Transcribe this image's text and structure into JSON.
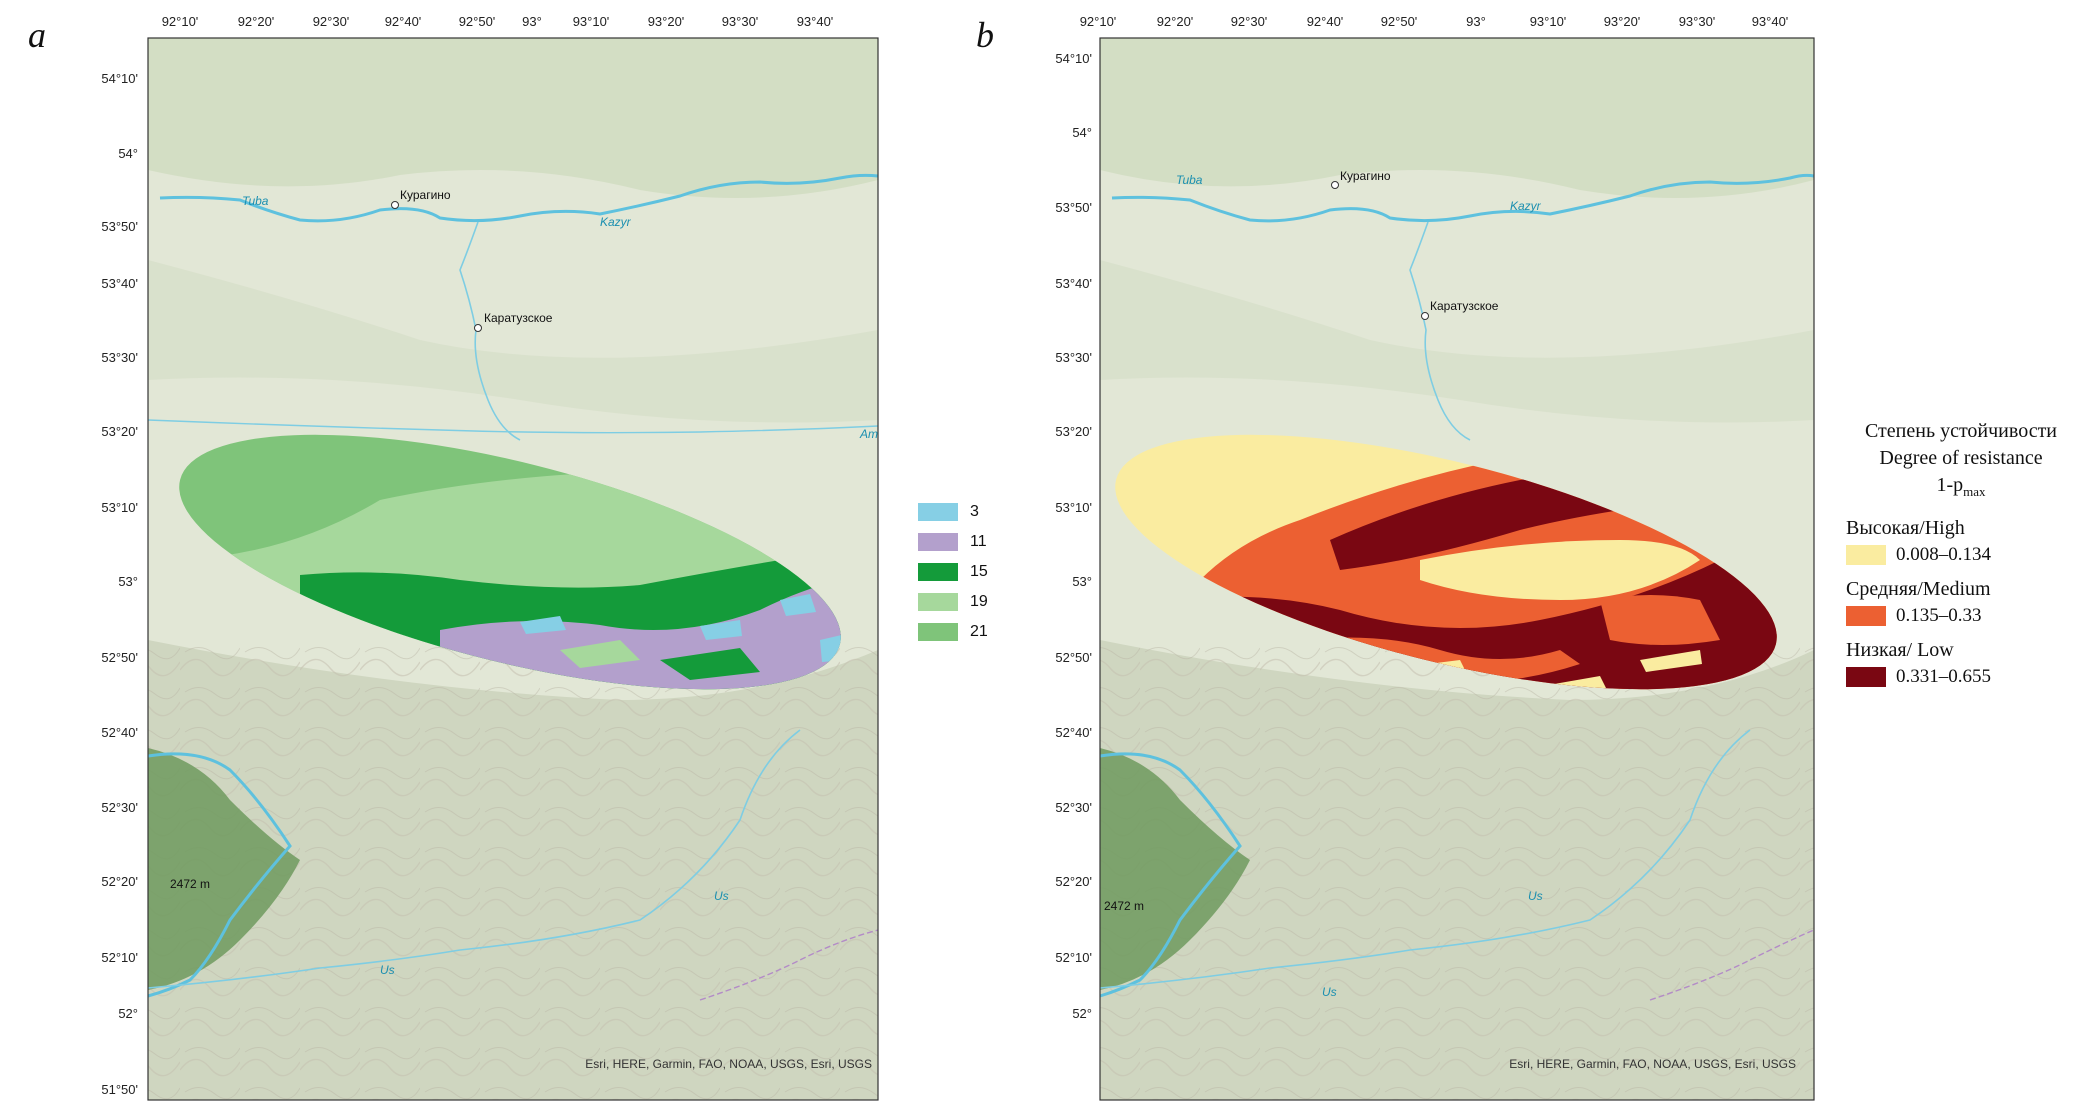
{
  "panels": [
    {
      "letter": "a",
      "attribution": "Esri, HERE, Garmin, FAO, NOAA, USGS, Esri, USGS"
    },
    {
      "letter": "b",
      "attribution": "Esri, HERE, Garmin, FAO, NOAA, USGS, Esri, USGS"
    }
  ],
  "lon_ticks": [
    "92°10'",
    "92°20'",
    "92°30'",
    "92°40'",
    "92°50'",
    "93°",
    "93°10'",
    "93°20'",
    "93°30'",
    "93°40'"
  ],
  "lat_ticks_a": [
    "54°10'",
    "54°",
    "53°50'",
    "53°40'",
    "53°30'",
    "53°20'",
    "53°10'",
    "53°",
    "52°50'",
    "52°40'",
    "52°30'",
    "52°20'",
    "52°10'",
    "52°",
    "51°50'"
  ],
  "lat_ticks_b": [
    "54°10'",
    "54°",
    "53°50'",
    "53°40'",
    "53°30'",
    "53°20'",
    "53°10'",
    "53°",
    "52°50'",
    "52°40'",
    "52°30'",
    "52°20'",
    "52°10'",
    "52°"
  ],
  "places": {
    "kuragino": "Курагино",
    "karatuzskoe": "Каратузское"
  },
  "rivers": {
    "tuba": "Tuba",
    "kazyr": "Kazyr",
    "us": "Us",
    "us_lower": "Us",
    "am": "Am"
  },
  "peak": "2472 m",
  "legend_a": [
    {
      "label": "3",
      "color": "#86cfe5"
    },
    {
      "label": "11",
      "color": "#b3a0cc"
    },
    {
      "label": "15",
      "color": "#149b3a"
    },
    {
      "label": "19",
      "color": "#a6d89c"
    },
    {
      "label": "21",
      "color": "#7fc47a"
    }
  ],
  "legend_b": {
    "title_ru": "Степень устойчивости",
    "title_en": "Degree of resistance",
    "title_formula": "1-p",
    "title_sub": "max",
    "classes": [
      {
        "name": "Высокая/High",
        "range": "0.008–0.134",
        "color": "#faeca0"
      },
      {
        "name": "Средняя/Medium",
        "range": "0.135–0.33",
        "color": "#ec6032"
      },
      {
        "name": "Низкая/ Low",
        "range": "0.331–0.655",
        "color": "#7a0712"
      }
    ]
  },
  "colors": {
    "map_bg": "#dfe7d3",
    "forest": "#9fba8c",
    "water": "#5ec1de"
  }
}
